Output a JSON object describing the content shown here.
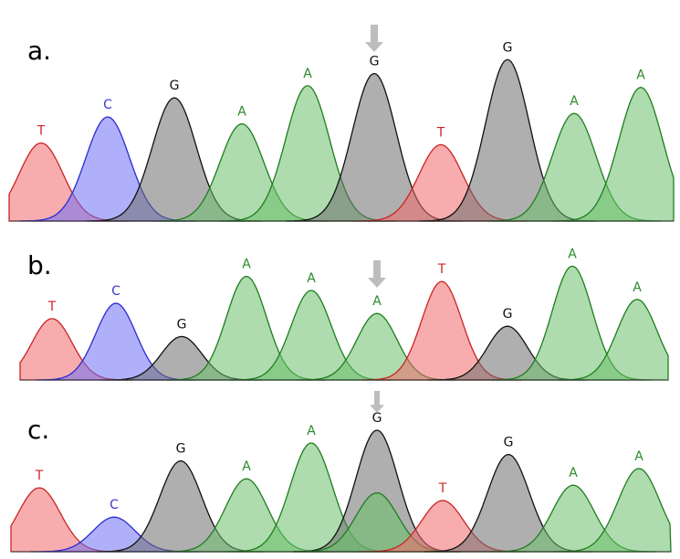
{
  "colors": {
    "A": {
      "fill": "#6cc06c",
      "stroke": "#1e7d1e",
      "text": "#2a8a2a"
    },
    "C": {
      "fill": "#6f6ff5",
      "stroke": "#2a2ad0",
      "text": "#3a3acb"
    },
    "G": {
      "fill": "#6e6e6e",
      "stroke": "#111111",
      "text": "#111111"
    },
    "T": {
      "fill": "#f06a6a",
      "stroke": "#cc2222",
      "text": "#d02626"
    },
    "arrow": "#bdbdbd"
  },
  "panels": [
    {
      "label": "a.",
      "peaks": [
        {
          "base": "T",
          "height": 0.45
        },
        {
          "base": "C",
          "height": 0.6
        },
        {
          "base": "G",
          "height": 0.71
        },
        {
          "base": "A",
          "height": 0.56
        },
        {
          "base": "A",
          "height": 0.78
        },
        {
          "base": "G",
          "height": 0.85
        },
        {
          "base": "T",
          "height": 0.44
        },
        {
          "base": "G",
          "height": 0.93
        },
        {
          "base": "A",
          "height": 0.62
        },
        {
          "base": "A",
          "height": 0.77
        }
      ],
      "arrow_at_peak": 6
    },
    {
      "label": "b.",
      "peaks": [
        {
          "base": "T",
          "height": 0.48
        },
        {
          "base": "C",
          "height": 0.6
        },
        {
          "base": "G",
          "height": 0.34
        },
        {
          "base": "A",
          "height": 0.81
        },
        {
          "base": "A",
          "height": 0.7
        },
        {
          "base": "A",
          "height": 0.52
        },
        {
          "base": "T",
          "height": 0.77
        },
        {
          "base": "G",
          "height": 0.42
        },
        {
          "base": "A",
          "height": 0.89
        },
        {
          "base": "A",
          "height": 0.63
        }
      ],
      "arrow_at_peak": 6
    },
    {
      "label": "c.",
      "peaks": [
        {
          "base": "T",
          "height": 0.5
        },
        {
          "base": "C",
          "height": 0.27
        },
        {
          "base": "G",
          "height": 0.71
        },
        {
          "base": "A",
          "height": 0.57
        },
        {
          "base": "A",
          "height": 0.85
        },
        {
          "base": "G",
          "height": 0.95,
          "overlay": {
            "base": "A",
            "height": 0.46
          }
        },
        {
          "base": "T",
          "height": 0.4
        },
        {
          "base": "G",
          "height": 0.76
        },
        {
          "base": "A",
          "height": 0.52
        },
        {
          "base": "A",
          "height": 0.65
        }
      ],
      "arrow_at_peak": 6
    }
  ]
}
